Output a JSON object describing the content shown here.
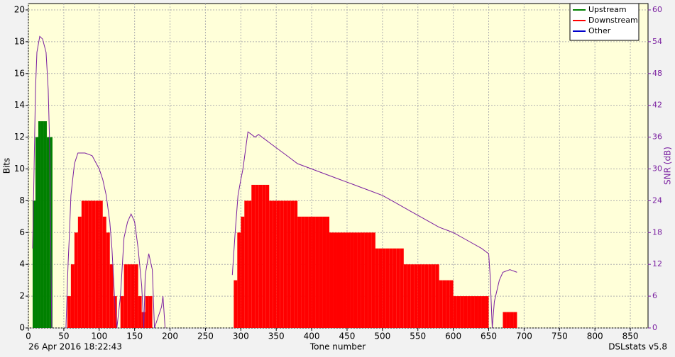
{
  "chart_data": {
    "type": "bar",
    "x_label": "Tone number",
    "y_label": "Bits",
    "y2_label": "SNR (dB)",
    "footer_left": "26 Apr 2016 18:22:43",
    "footer_right": "DSLstats v5.8",
    "xlim": [
      0,
      875
    ],
    "ylim": [
      0,
      20.4
    ],
    "y2lim": [
      0,
      61.2
    ],
    "xticks": [
      0,
      50,
      100,
      150,
      200,
      250,
      300,
      350,
      400,
      450,
      500,
      550,
      600,
      650,
      700,
      750,
      800,
      850
    ],
    "yticks": [
      0,
      2,
      4,
      6,
      8,
      10,
      12,
      14,
      16,
      18,
      20
    ],
    "y2ticks": [
      0,
      6,
      12,
      18,
      24,
      30,
      36,
      42,
      48,
      54,
      60
    ],
    "grid": true,
    "legend": "top-right",
    "series": [
      {
        "name": "Upstream",
        "color": "#008000",
        "x": [
          6,
          10,
          14,
          18,
          22,
          26,
          30
        ],
        "values": [
          8,
          12,
          13,
          13,
          13,
          12,
          12
        ]
      },
      {
        "name": "Downstream",
        "color": "#ff0000",
        "x": [
          50,
          55,
          60,
          65,
          70,
          75,
          80,
          85,
          90,
          95,
          100,
          105,
          110,
          115,
          120,
          125,
          130,
          135,
          140,
          145,
          150,
          155,
          160,
          165,
          170,
          175,
          180,
          185,
          190,
          195,
          200,
          205,
          210,
          215,
          220,
          225,
          230,
          235,
          240,
          245,
          250,
          255,
          260,
          265,
          270,
          275,
          280,
          285,
          290,
          295,
          300,
          305,
          310,
          315,
          320,
          325,
          330,
          335,
          340,
          345,
          350,
          355,
          360,
          365,
          370,
          375,
          380,
          385,
          390,
          395,
          400,
          405,
          410,
          415,
          420,
          425,
          430,
          435,
          440,
          445,
          450,
          455,
          460,
          465,
          470,
          475,
          480,
          485,
          490,
          495,
          500,
          505,
          510,
          515,
          520,
          525,
          530,
          535,
          540,
          545,
          550,
          555,
          560,
          565,
          570,
          575,
          580,
          585,
          590,
          595,
          600,
          605,
          610,
          615,
          620,
          625,
          630,
          635,
          640,
          645,
          650,
          655,
          660,
          665,
          670,
          675,
          680,
          685
        ],
        "values": [
          0,
          2,
          4,
          6,
          7,
          8,
          8,
          8,
          8,
          8,
          8,
          7,
          6,
          4,
          2,
          0,
          2,
          4,
          4,
          4,
          4,
          2,
          1,
          2,
          2,
          0,
          0,
          0,
          0,
          0,
          0,
          0,
          0,
          0,
          0,
          0,
          0,
          0,
          0,
          0,
          0,
          0,
          0,
          0,
          0,
          0,
          0,
          0,
          3,
          6,
          7,
          8,
          8,
          9,
          9,
          9,
          9,
          9,
          8,
          8,
          8,
          8,
          8,
          8,
          8,
          8,
          7,
          7,
          7,
          7,
          7,
          7,
          7,
          7,
          7,
          6,
          6,
          6,
          6,
          6,
          6,
          6,
          6,
          6,
          6,
          6,
          6,
          6,
          5,
          5,
          5,
          5,
          5,
          5,
          5,
          5,
          4,
          4,
          4,
          4,
          4,
          4,
          4,
          4,
          4,
          4,
          3,
          3,
          3,
          3,
          2,
          2,
          2,
          2,
          2,
          2,
          2,
          2,
          2,
          2,
          0,
          0,
          0,
          0,
          1,
          1,
          1,
          1
        ]
      },
      {
        "name": "Other",
        "color": "#0000cc",
        "x": [],
        "values": []
      }
    ],
    "snr_line": {
      "color": "#7a1fa0",
      "axis": "y2",
      "x": [
        6,
        8,
        10,
        12,
        16,
        20,
        25,
        28,
        30,
        33,
        40,
        53,
        56,
        58,
        60,
        65,
        70,
        80,
        90,
        100,
        105,
        110,
        115,
        118,
        122,
        125,
        130,
        135,
        140,
        145,
        150,
        155,
        160,
        163,
        165,
        170,
        175,
        178,
        188,
        190,
        193,
        240,
        288,
        292,
        296,
        300,
        303,
        306,
        310,
        315,
        320,
        325,
        330,
        335,
        340,
        350,
        360,
        370,
        380,
        400,
        420,
        440,
        450,
        460,
        480,
        500,
        520,
        540,
        560,
        580,
        600,
        620,
        640,
        650,
        652,
        655,
        658,
        665,
        670,
        680,
        690
      ],
      "values": [
        15,
        30,
        45,
        52,
        55,
        54.5,
        52,
        45,
        35,
        0,
        null,
        0,
        12,
        18,
        25,
        31,
        33,
        33,
        32.5,
        30,
        28,
        25,
        20,
        15,
        5,
        0,
        6,
        17,
        20,
        21.5,
        20,
        15,
        8,
        0,
        10,
        14,
        11,
        0,
        4,
        6,
        0,
        null,
        10,
        18,
        25,
        28,
        30,
        33,
        37,
        36.5,
        36,
        36.5,
        36,
        35.5,
        35,
        34,
        33,
        32,
        31,
        30,
        29,
        28,
        27.5,
        27,
        26,
        25,
        23.5,
        22,
        20.5,
        19,
        18,
        16.5,
        15,
        14,
        10,
        0,
        5,
        9,
        10.5,
        11,
        10.5
      ]
    }
  }
}
